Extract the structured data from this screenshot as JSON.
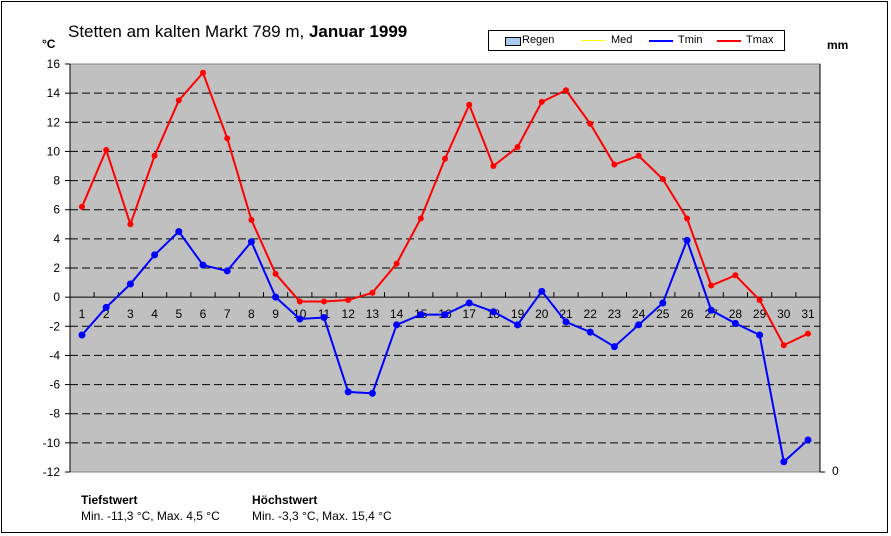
{
  "chart_data": {
    "type": "line",
    "title_plain": "Stetten am kalten Markt 789 m,",
    "title_bold": "Januar 1999",
    "ylabel": "°C",
    "y2label": "mm",
    "y2ticks": [
      "0"
    ],
    "ylim": [
      -12,
      16
    ],
    "yticks": [
      -12,
      -10,
      -8,
      -6,
      -4,
      -2,
      0,
      2,
      4,
      6,
      8,
      10,
      12,
      14,
      16
    ],
    "x": [
      1,
      2,
      3,
      4,
      5,
      6,
      7,
      8,
      9,
      10,
      11,
      12,
      13,
      14,
      15,
      16,
      17,
      18,
      19,
      20,
      21,
      22,
      23,
      24,
      25,
      26,
      27,
      28,
      29,
      30,
      31
    ],
    "grid": true,
    "legend_position": "top-right",
    "legend": [
      "Regen",
      "Med",
      "Tmin",
      "Tmax"
    ],
    "series": [
      {
        "name": "Tmin",
        "color": "#0000ff",
        "values": [
          -2.6,
          -0.7,
          0.9,
          2.9,
          4.5,
          2.2,
          1.8,
          3.8,
          0.0,
          -1.5,
          -1.4,
          -6.5,
          -6.6,
          -1.9,
          -1.2,
          -1.2,
          -0.4,
          -1.0,
          -1.9,
          0.4,
          -1.7,
          -2.4,
          -3.4,
          -1.9,
          -0.4,
          3.9,
          -0.9,
          -1.8,
          -2.6,
          -11.3,
          -9.8
        ]
      },
      {
        "name": "Tmax",
        "color": "#ff0000",
        "values": [
          6.2,
          10.1,
          5.0,
          9.7,
          13.5,
          15.4,
          10.9,
          5.3,
          1.6,
          -0.3,
          -0.3,
          -0.2,
          0.3,
          2.3,
          5.4,
          9.5,
          13.2,
          9.0,
          10.3,
          13.4,
          14.2,
          11.9,
          9.1,
          9.7,
          8.1,
          5.4,
          0.8,
          1.5,
          -0.2,
          -3.3,
          -2.5
        ]
      }
    ]
  },
  "footer": {
    "min_title": "Tiefstwert",
    "min_text": "Min. -11,3 °C, Max. 4,5 °C",
    "max_title": "Höchstwert",
    "max_text": "Min. -3,3 °C, Max. 15,4 °C"
  }
}
